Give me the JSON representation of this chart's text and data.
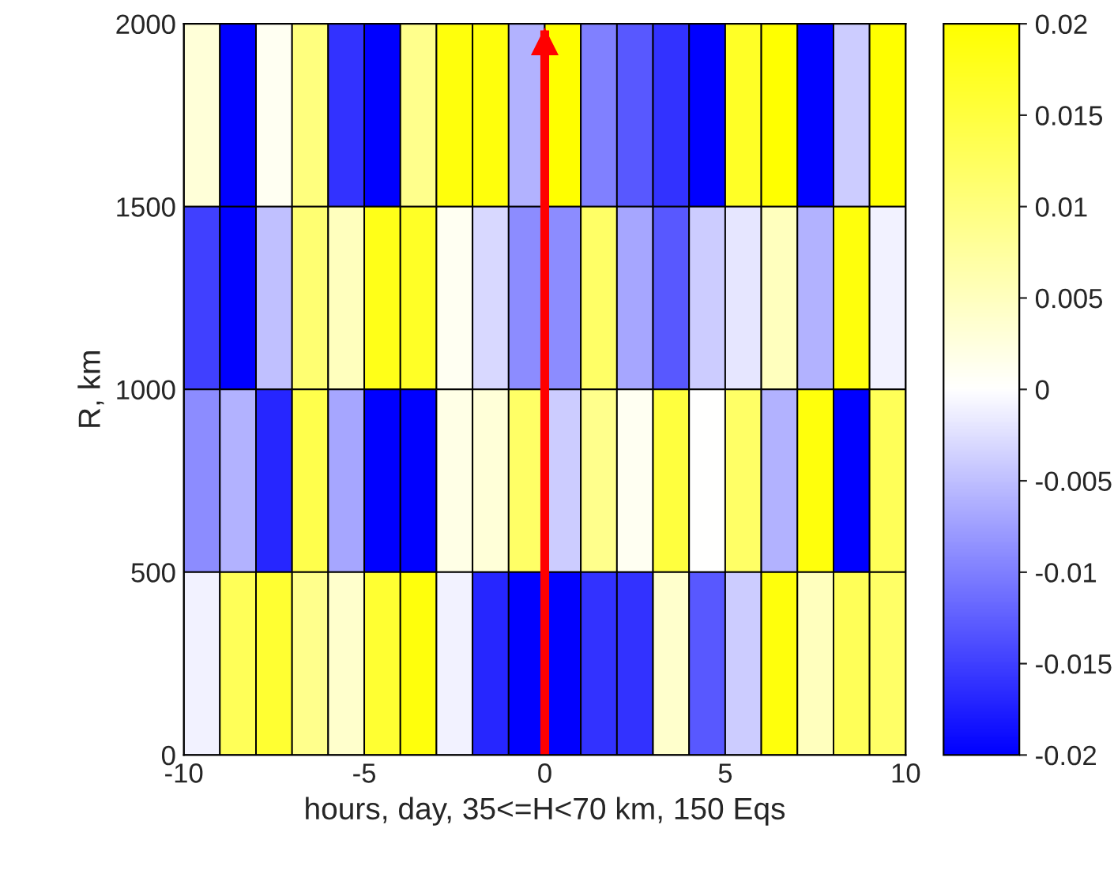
{
  "chart_data": {
    "type": "heatmap",
    "xlabel": "hours, day, 35<=H<70 km, 150 Eqs",
    "ylabel": "R, km",
    "x": [
      -9.5,
      -8.5,
      -7.5,
      -6.5,
      -5.5,
      -4.5,
      -3.5,
      -2.5,
      -1.5,
      -0.5,
      0.5,
      1.5,
      2.5,
      3.5,
      4.5,
      5.5,
      6.5,
      7.5,
      8.5,
      9.5
    ],
    "xlim": [
      -10,
      10
    ],
    "xticks": [
      -10,
      -5,
      0,
      5,
      10
    ],
    "ylim": [
      0,
      2000
    ],
    "yticks": [
      0,
      500,
      1000,
      1500,
      2000
    ],
    "cells": [
      [
        0.003,
        -0.02,
        0.001,
        0.01,
        -0.016,
        -0.02,
        0.009,
        0.019,
        0.019,
        -0.006,
        0.02,
        -0.01,
        -0.013,
        -0.016,
        -0.02,
        0.017,
        0.02,
        -0.02,
        -0.004,
        0.02
      ],
      [
        -0.015,
        -0.02,
        -0.005,
        0.011,
        0.005,
        0.018,
        0.017,
        0.001,
        -0.003,
        -0.009,
        -0.009,
        0.012,
        -0.007,
        -0.013,
        -0.004,
        -0.002,
        0.005,
        -0.006,
        0.019,
        -0.001
      ],
      [
        -0.009,
        -0.006,
        -0.017,
        0.014,
        -0.007,
        -0.02,
        -0.02,
        0.002,
        0.003,
        0.012,
        -0.004,
        0.009,
        0.001,
        0.015,
        0,
        0.012,
        -0.006,
        0.019,
        -0.02,
        0.013
      ],
      [
        -0.001,
        0.013,
        0.016,
        0.009,
        0.004,
        0.016,
        0.019,
        -0.001,
        -0.017,
        -0.02,
        -0.02,
        -0.016,
        -0.016,
        0.004,
        -0.013,
        -0.004,
        0.019,
        0.005,
        0.013,
        0.012
      ]
    ],
    "clim": [
      -0.02,
      0.02
    ],
    "cticks": [
      -0.02,
      -0.015,
      -0.01,
      -0.005,
      0,
      0.005,
      0.01,
      0.015,
      0.02
    ],
    "ref_lines": [
      {
        "axis": "x",
        "value": 0,
        "color": "#ff0000"
      }
    ]
  }
}
